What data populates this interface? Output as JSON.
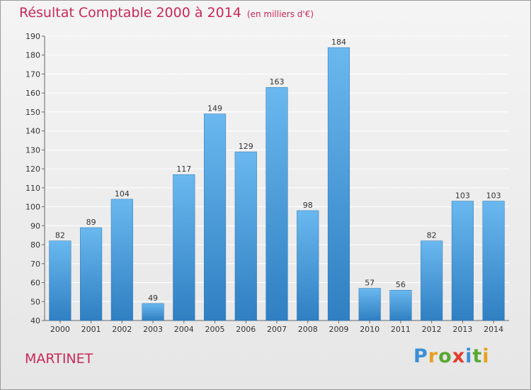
{
  "header": {
    "title": "Résultat Comptable 2000 à 2014",
    "unit": "(en milliers d'€)"
  },
  "commune": "MARTINET",
  "logo": {
    "letters": [
      "P",
      "r",
      "o",
      "x",
      "i",
      "t",
      "i"
    ],
    "colors": [
      "#3d8fd6",
      "#e8a020",
      "#5aa832",
      "#e23c2c",
      "#3d8fd6",
      "#5aa832",
      "#e8a020"
    ]
  },
  "colors": {
    "bar_top": "#6ab8ef",
    "bar_bottom": "#2f7fc2",
    "grid": "#ffffff",
    "text": "#333333",
    "accent": "#c8285a"
  },
  "chart_data": {
    "type": "bar",
    "title": "Résultat Comptable 2000 à 2014",
    "xlabel": "",
    "ylabel": "",
    "categories": [
      "2000",
      "2001",
      "2002",
      "2003",
      "2004",
      "2005",
      "2006",
      "2007",
      "2008",
      "2009",
      "2010",
      "2011",
      "2012",
      "2013",
      "2014"
    ],
    "values": [
      82,
      89,
      104,
      49,
      117,
      149,
      129,
      163,
      98,
      184,
      57,
      56,
      82,
      103,
      103
    ],
    "ylim": [
      40,
      190
    ],
    "yticks": [
      40,
      50,
      60,
      70,
      80,
      90,
      100,
      110,
      120,
      130,
      140,
      150,
      160,
      170,
      180,
      190
    ],
    "grid": true
  }
}
